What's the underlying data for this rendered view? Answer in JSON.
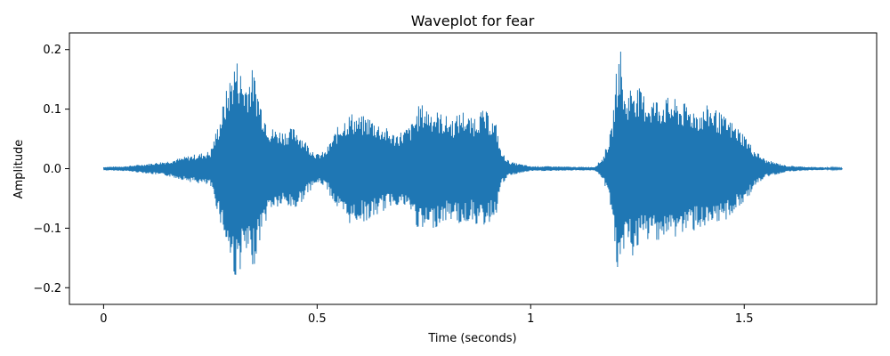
{
  "chart_data": {
    "type": "area",
    "title": "Waveplot for fear",
    "xlabel": "Time (seconds)",
    "ylabel": "Amplitude",
    "xlim": [
      -0.08,
      1.81
    ],
    "ylim": [
      -0.228,
      0.228
    ],
    "xticks": [
      {
        "value": 0,
        "label": "0"
      },
      {
        "value": 0.5,
        "label": "0.5"
      },
      {
        "value": 1,
        "label": "1"
      },
      {
        "value": 1.5,
        "label": "1.5"
      }
    ],
    "yticks": [
      {
        "value": 0.2,
        "label": "0.2"
      },
      {
        "value": 0.1,
        "label": "0.1"
      },
      {
        "value": 0,
        "label": "0.0"
      },
      {
        "value": -0.1,
        "label": "−0.1"
      },
      {
        "value": -0.2,
        "label": "−0.2"
      }
    ],
    "grid": false,
    "color": "#1f77b4",
    "series": [
      {
        "envelope_time": [
          0,
          0.05,
          0.1,
          0.15,
          0.18,
          0.2,
          0.22,
          0.25,
          0.27,
          0.29,
          0.31,
          0.33,
          0.35,
          0.37,
          0.39,
          0.42,
          0.45,
          0.48,
          0.5,
          0.52,
          0.54,
          0.56,
          0.58,
          0.6,
          0.62,
          0.64,
          0.66,
          0.68,
          0.7,
          0.72,
          0.74,
          0.76,
          0.78,
          0.8,
          0.82,
          0.84,
          0.86,
          0.88,
          0.9,
          0.92,
          0.93,
          0.95,
          1.0,
          1.05,
          1.1,
          1.15,
          1.17,
          1.19,
          1.2,
          1.21,
          1.22,
          1.24,
          1.26,
          1.28,
          1.3,
          1.33,
          1.36,
          1.4,
          1.42,
          1.45,
          1.47,
          1.5,
          1.52,
          1.55,
          1.6,
          1.65,
          1.7,
          1.73
        ],
        "envelope_max": [
          0.003,
          0.004,
          0.008,
          0.013,
          0.018,
          0.022,
          0.025,
          0.03,
          0.08,
          0.14,
          0.19,
          0.15,
          0.17,
          0.11,
          0.07,
          0.065,
          0.07,
          0.04,
          0.025,
          0.03,
          0.06,
          0.085,
          0.095,
          0.088,
          0.09,
          0.08,
          0.07,
          0.06,
          0.065,
          0.075,
          0.11,
          0.105,
          0.098,
          0.09,
          0.085,
          0.1,
          0.085,
          0.1,
          0.095,
          0.075,
          0.03,
          0.012,
          0.004,
          0.004,
          0.003,
          0.003,
          0.02,
          0.07,
          0.16,
          0.21,
          0.12,
          0.15,
          0.13,
          0.12,
          0.12,
          0.12,
          0.11,
          0.1,
          0.11,
          0.09,
          0.08,
          0.06,
          0.035,
          0.015,
          0.005,
          0.003,
          0.002,
          0.001
        ],
        "envelope_min": [
          -0.003,
          -0.004,
          -0.008,
          -0.013,
          -0.018,
          -0.022,
          -0.025,
          -0.03,
          -0.08,
          -0.14,
          -0.19,
          -0.15,
          -0.17,
          -0.11,
          -0.07,
          -0.065,
          -0.07,
          -0.04,
          -0.025,
          -0.03,
          -0.06,
          -0.085,
          -0.095,
          -0.088,
          -0.09,
          -0.08,
          -0.07,
          -0.06,
          -0.065,
          -0.075,
          -0.11,
          -0.105,
          -0.098,
          -0.09,
          -0.085,
          -0.1,
          -0.085,
          -0.1,
          -0.095,
          -0.075,
          -0.03,
          -0.012,
          -0.004,
          -0.004,
          -0.003,
          -0.003,
          -0.02,
          -0.07,
          -0.16,
          -0.21,
          -0.12,
          -0.15,
          -0.13,
          -0.12,
          -0.12,
          -0.12,
          -0.11,
          -0.1,
          -0.11,
          -0.09,
          -0.08,
          -0.06,
          -0.035,
          -0.015,
          -0.005,
          -0.003,
          -0.002,
          -0.001
        ]
      }
    ]
  }
}
